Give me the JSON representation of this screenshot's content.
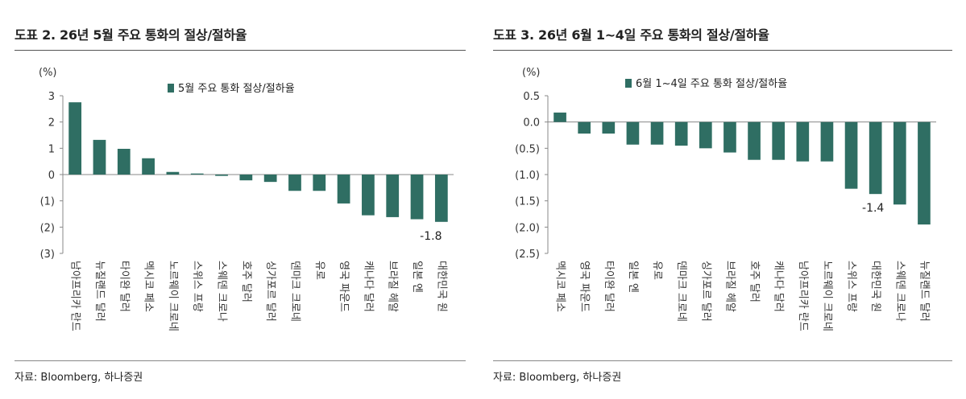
{
  "chart_data": [
    {
      "type": "bar",
      "title": "도표 2. 26년 5월 주요 통화의 절상/절하율",
      "unit_label": "(%)",
      "categories": [
        "남아프리카 란드",
        "뉴질랜드 달러",
        "타이완 달러",
        "멕시코 페소",
        "노르웨이 크로네",
        "스위스 프랑",
        "스웨덴 크로나",
        "호주 달러",
        "싱가포르 달러",
        "덴마크 크로네",
        "유로",
        "영국 파운드",
        "캐나다 달러",
        "브라질 헤알",
        "일본 엔",
        "대한민국 원"
      ],
      "series": [
        {
          "name": "5월 주요 통화 절상/절하율",
          "values": [
            2.75,
            1.32,
            0.98,
            0.62,
            0.1,
            0.04,
            -0.05,
            -0.22,
            -0.28,
            -0.62,
            -0.62,
            -1.1,
            -1.55,
            -1.62,
            -1.7,
            -1.8
          ]
        }
      ],
      "ylim": [
        -3,
        3
      ],
      "yticks": [
        3,
        2,
        1,
        0,
        -1,
        -2,
        -3
      ],
      "ytick_labels": [
        "3",
        "2",
        "1",
        "0",
        "(1)",
        "(2)",
        "(3)"
      ],
      "annotation": {
        "category": "대한민국 원",
        "text": "-1.8"
      },
      "legend_position": "top-center",
      "grid": false,
      "color": "#2f6e63",
      "source": "자료: Bloomberg, 하나증권"
    },
    {
      "type": "bar",
      "title": "도표 3. 26년 6월 1~4일 주요 통화의 절상/절하율",
      "unit_label": "(%)",
      "categories": [
        "멕시코 페소",
        "영국 파운드",
        "타이완 달러",
        "일본 엔",
        "유로",
        "덴마크 크로네",
        "싱가포르 달러",
        "브라질 헤알",
        "호주 달러",
        "캐나다 달러",
        "남아프리카 란드",
        "노르웨이 크로네",
        "스위스 프랑",
        "대한민국 원",
        "스웨덴 크로나",
        "뉴질랜드 달러"
      ],
      "series": [
        {
          "name": "6월 1~4일 주요 통화 절상/절하율",
          "values": [
            0.18,
            -0.22,
            -0.22,
            -0.43,
            -0.43,
            -0.45,
            -0.5,
            -0.58,
            -0.72,
            -0.72,
            -0.75,
            -0.75,
            -1.27,
            -1.37,
            -1.57,
            -1.95
          ]
        }
      ],
      "ylim": [
        -2.5,
        0.5
      ],
      "yticks": [
        0.5,
        0.0,
        -0.5,
        -1.0,
        -1.5,
        -2.0,
        -2.5
      ],
      "ytick_labels": [
        "0.5",
        "0.0",
        "(0.5)",
        "(1.0)",
        "(1.5)",
        "(2.0)",
        "(2.5)"
      ],
      "annotation": {
        "category": "대한민국 원",
        "text": "-1.4"
      },
      "legend_position": "top-center",
      "grid": false,
      "color": "#2f6e63",
      "source": "자료: Bloomberg, 하나증권"
    }
  ]
}
